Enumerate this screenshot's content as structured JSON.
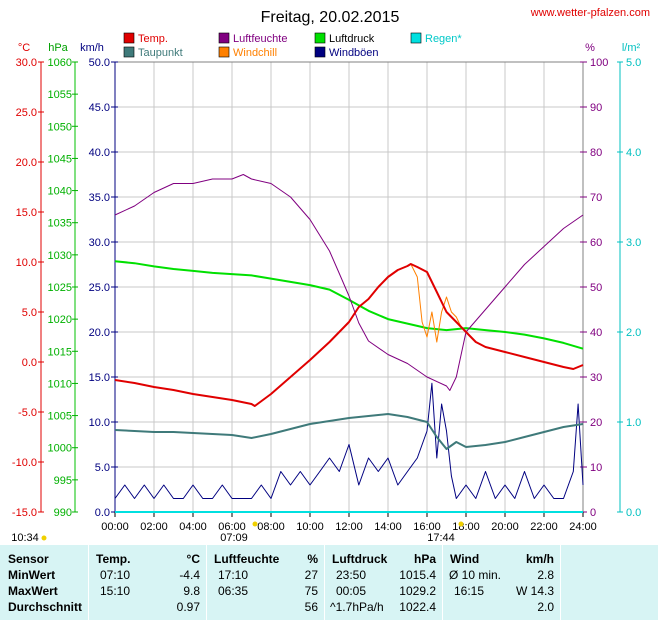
{
  "header": {
    "title": "Freitag, 20.02.2015",
    "source": "www.wetter-pfalzen.com"
  },
  "legend": [
    {
      "label": "Temp.",
      "color": "#e00000"
    },
    {
      "label": "Taupunkt",
      "color": "#3f7a7a"
    },
    {
      "label": "Luftfeuchte",
      "color": "#800080"
    },
    {
      "label": "Windchill",
      "color": "#ff8000"
    },
    {
      "label": "Luftdruck",
      "color": "#00e000"
    },
    {
      "label": "Windböen",
      "color": "#000080"
    },
    {
      "label": "Regen*",
      "color": "#00e0e0"
    }
  ],
  "axis_units": {
    "temp": "°C",
    "pressure": "hPa",
    "wind": "km/h",
    "humidity": "%",
    "rain": "l/m²"
  },
  "sun_marks": {
    "sunrise_label": "07:09",
    "sunset_label": "17:44",
    "daylength_label": "10:34"
  },
  "stats": {
    "headers": [
      "Sensor",
      "Temp.",
      "°C",
      "Luftfeuchte",
      "%",
      "Luftdruck",
      "hPa",
      "Wind",
      "km/h"
    ],
    "rows": [
      {
        "label": "MinWert",
        "temp_time": "07:10",
        "temp_val": "-4.4",
        "hum_time": "17:10",
        "hum_val": "27",
        "press_time": "23:50",
        "press_val": "1015.4",
        "wind_time": "Ø 10 min.",
        "wind_val": "2.8"
      },
      {
        "label": "MaxWert",
        "temp_time": "15:10",
        "temp_val": "9.8",
        "hum_time": "06:35",
        "hum_val": "75",
        "press_time": "00:05",
        "press_val": "1029.2",
        "wind_time": "16:15",
        "wind_val": "W 14.3"
      },
      {
        "label": "Durchschnitt",
        "temp_time": "",
        "temp_val": "0.97",
        "hum_time": "",
        "hum_val": "56",
        "press_time": "^1.7hPa/h",
        "press_val": "1022.4",
        "wind_time": "",
        "wind_val": "2.0"
      }
    ]
  },
  "chart_data": {
    "type": "line",
    "x_unit": "hours",
    "xlim": [
      0,
      24
    ],
    "x_ticks": [
      "00:00",
      "02:00",
      "04:00",
      "06:00",
      "08:00",
      "10:00",
      "12:00",
      "14:00",
      "16:00",
      "18:00",
      "20:00",
      "22:00",
      "24:00"
    ],
    "axes": {
      "temp": {
        "range": [
          -15,
          30
        ],
        "ticks": [
          "30.0",
          "25.0",
          "20.0",
          "15.0",
          "10.0",
          "5.0",
          "0.0",
          "-5.0",
          "-10.0",
          "-15.0"
        ]
      },
      "pressure": {
        "range": [
          990,
          1060
        ],
        "ticks": [
          "1060",
          "1055",
          "1050",
          "1045",
          "1040",
          "1035",
          "1030",
          "1025",
          "1020",
          "1015",
          "1010",
          "1005",
          "1000",
          "995",
          "990"
        ]
      },
      "wind": {
        "range": [
          0,
          50
        ],
        "ticks": [
          "50.0",
          "45.0",
          "40.0",
          "35.0",
          "30.0",
          "25.0",
          "20.0",
          "15.0",
          "10.0",
          "5.0",
          "0.0"
        ]
      },
      "humidity": {
        "range": [
          0,
          100
        ],
        "ticks": [
          "100",
          "90",
          "80",
          "70",
          "60",
          "50",
          "40",
          "30",
          "20",
          "10",
          "0"
        ]
      },
      "rain": {
        "range": [
          0,
          5
        ],
        "ticks": [
          "5.0",
          "4.0",
          "3.0",
          "2.0",
          "1.0",
          "0.0"
        ]
      }
    },
    "grid": true,
    "series": [
      {
        "name": "Temp.",
        "axis": "temp",
        "color": "#e00000",
        "width": 2,
        "x": [
          0,
          1,
          2,
          3,
          4,
          5,
          6,
          7,
          7.17,
          8,
          9,
          10,
          11,
          12,
          12.5,
          13,
          13.5,
          14,
          14.5,
          15,
          15.17,
          15.5,
          16,
          16.5,
          17,
          17.5,
          18,
          18.5,
          19,
          20,
          21,
          22,
          23,
          23.5,
          24
        ],
        "y": [
          -1.8,
          -2.1,
          -2.5,
          -2.8,
          -3.2,
          -3.5,
          -3.8,
          -4.2,
          -4.4,
          -3.2,
          -1.5,
          0.2,
          2.0,
          4.0,
          5.5,
          6.3,
          7.5,
          8.5,
          9.2,
          9.6,
          9.8,
          9.5,
          9.0,
          7.0,
          5.0,
          4.0,
          3.0,
          2.0,
          1.5,
          1.0,
          0.5,
          0.0,
          -0.5,
          -0.7,
          -0.3
        ]
      },
      {
        "name": "Taupunkt",
        "axis": "temp",
        "color": "#3f7a7a",
        "width": 2,
        "x": [
          0,
          1,
          2,
          3,
          4,
          5,
          6,
          7,
          8,
          9,
          10,
          11,
          12,
          13,
          13.5,
          14,
          15,
          16,
          16.5,
          17,
          17.5,
          18,
          19,
          20,
          21,
          22,
          23,
          24
        ],
        "y": [
          -6.8,
          -6.9,
          -7.0,
          -7.0,
          -7.1,
          -7.2,
          -7.3,
          -7.6,
          -7.2,
          -6.7,
          -6.2,
          -5.9,
          -5.6,
          -5.4,
          -5.3,
          -5.2,
          -5.5,
          -6.0,
          -7.5,
          -8.7,
          -8.0,
          -8.5,
          -8.3,
          -8.0,
          -7.5,
          -7.0,
          -6.5,
          -6.2
        ]
      },
      {
        "name": "Luftfeuchte",
        "axis": "humidity",
        "color": "#800080",
        "width": 1,
        "x": [
          0,
          1,
          2,
          3,
          4,
          5,
          6,
          6.58,
          7,
          8,
          9,
          10,
          11,
          11.5,
          12,
          12.5,
          13,
          14,
          15,
          16,
          17,
          17.17,
          17.5,
          18,
          19,
          20,
          21,
          22,
          23,
          24
        ],
        "y": [
          66,
          68,
          71,
          73,
          73,
          74,
          74,
          75,
          74,
          73,
          70,
          65,
          58,
          53,
          48,
          42,
          38,
          35,
          33,
          30,
          28,
          27,
          30,
          40,
          45,
          50,
          55,
          59,
          63,
          66
        ]
      },
      {
        "name": "Windchill",
        "axis": "temp",
        "color": "#ff8000",
        "width": 1,
        "x": [
          15.17,
          15.5,
          15.75,
          16,
          16.25,
          16.5,
          16.75,
          17,
          17.25,
          17.5,
          17.75,
          18
        ],
        "y": [
          9.8,
          8.5,
          4.0,
          2.5,
          5.0,
          2.0,
          5.0,
          6.5,
          5.0,
          4.5,
          3.5,
          3.0
        ]
      },
      {
        "name": "Luftdruck",
        "axis": "pressure",
        "color": "#00e000",
        "width": 2,
        "x": [
          0,
          1,
          2,
          3,
          4,
          5,
          6,
          7,
          8,
          9,
          10,
          11,
          12,
          13,
          14,
          15,
          16,
          17,
          18,
          19,
          20,
          21,
          22,
          23,
          24
        ],
        "y": [
          1029.0,
          1028.7,
          1028.2,
          1027.8,
          1027.5,
          1027.2,
          1027.0,
          1026.8,
          1026.3,
          1025.8,
          1025.3,
          1024.6,
          1023.0,
          1021.3,
          1020.0,
          1019.3,
          1018.6,
          1018.3,
          1018.6,
          1018.3,
          1018.0,
          1017.6,
          1017.0,
          1016.3,
          1015.4
        ]
      },
      {
        "name": "Windböen",
        "axis": "wind",
        "color": "#000080",
        "width": 1,
        "x": [
          0,
          0.5,
          1,
          1.5,
          2,
          2.5,
          3,
          3.5,
          4,
          4.5,
          5,
          5.5,
          6,
          6.5,
          7,
          7.5,
          8,
          8.5,
          9,
          9.5,
          10,
          10.5,
          11,
          11.5,
          12,
          12.5,
          13,
          13.5,
          14,
          14.5,
          15,
          15.5,
          16,
          16.25,
          16.5,
          16.75,
          17,
          17.25,
          17.5,
          18,
          18.5,
          19,
          19.5,
          20,
          20.5,
          21,
          21.5,
          22,
          22.5,
          23,
          23.5,
          23.75,
          24
        ],
        "y": [
          1.5,
          3.0,
          1.5,
          3.0,
          1.5,
          3.0,
          1.5,
          1.5,
          3.0,
          1.5,
          1.5,
          3.0,
          1.5,
          1.5,
          1.5,
          3.0,
          1.5,
          4.5,
          3.0,
          4.5,
          3.0,
          4.5,
          6.0,
          4.5,
          7.5,
          3.0,
          6.0,
          4.5,
          6.0,
          3.0,
          4.5,
          6.0,
          9.0,
          14.3,
          6.0,
          12.0,
          9.0,
          4.0,
          1.5,
          3.0,
          1.5,
          4.5,
          1.5,
          3.0,
          1.5,
          4.5,
          1.5,
          3.0,
          1.5,
          1.5,
          4.5,
          12.0,
          3.0
        ]
      }
    ]
  }
}
